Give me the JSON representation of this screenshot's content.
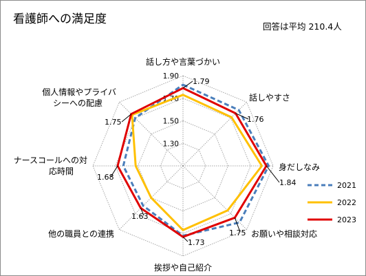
{
  "chart_data": {
    "type": "radar",
    "title": "看護師への満足度",
    "note": "回答は平均 210.4人",
    "categories": [
      [
        "話し方や言葉づかい"
      ],
      [
        "話しやすさ"
      ],
      [
        "身だしなみ"
      ],
      [
        "お願いや相談対応"
      ],
      [
        "挨拶や自己紹介"
      ],
      [
        "他の職員との連携"
      ],
      [
        "ナースコールへの対",
        "応時間"
      ],
      [
        "個人情報やプライバ",
        "シーへの配慮"
      ]
    ],
    "scale": {
      "min": 1.1,
      "max": 1.9,
      "ticks": [
        1.3,
        1.5,
        1.7,
        1.9
      ]
    },
    "series": [
      {
        "name": "2021",
        "color": "#4a7ebb",
        "style": "dashed",
        "values": [
          1.82,
          1.8,
          1.86,
          1.81,
          1.72,
          1.6,
          1.63,
          1.7
        ]
      },
      {
        "name": "2022",
        "color": "#ffc000",
        "style": "solid",
        "values": [
          1.73,
          1.71,
          1.8,
          1.66,
          1.67,
          1.5,
          1.52,
          1.74
        ]
      },
      {
        "name": "2023",
        "color": "#e00000",
        "style": "solid",
        "values": [
          1.79,
          1.76,
          1.84,
          1.75,
          1.73,
          1.63,
          1.68,
          1.75
        ]
      }
    ],
    "data_labels": [
      {
        "category_index": 0,
        "text": "1.79"
      },
      {
        "category_index": 1,
        "text": "1.76"
      },
      {
        "category_index": 2,
        "text": "1.84"
      },
      {
        "category_index": 3,
        "text": "1.75"
      },
      {
        "category_index": 4,
        "text": "1.73"
      },
      {
        "category_index": 5,
        "text": "1.63"
      },
      {
        "category_index": 6,
        "text": "1.68"
      },
      {
        "category_index": 7,
        "text": "1.75"
      }
    ],
    "legend_position": "right",
    "grid": true
  }
}
